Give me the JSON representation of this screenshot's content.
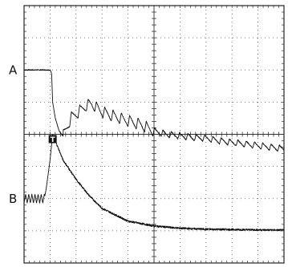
{
  "chart_data": {
    "type": "line",
    "title": "",
    "xlabel": "",
    "ylabel": "",
    "grid": true,
    "xlim": [
      0,
      10
    ],
    "ylim": [
      -4,
      4
    ],
    "x_divisions": 10,
    "y_divisions": 8,
    "trigger_marker": {
      "label": "T",
      "x": 1.1,
      "y": 0.0
    },
    "series": [
      {
        "name": "A",
        "label_y": 2.0,
        "points": [
          [
            0,
            2.0
          ],
          [
            1.0,
            2.0
          ],
          [
            1.06,
            1.9
          ],
          [
            1.1,
            1.0
          ],
          [
            1.2,
            0.5
          ],
          [
            1.35,
            0.1
          ],
          [
            1.5,
            -0.05
          ],
          [
            1.8,
            0.5
          ],
          [
            2.1,
            0.7
          ],
          [
            2.4,
            0.9
          ],
          [
            2.6,
            0.95
          ],
          [
            3.0,
            0.7
          ],
          [
            3.5,
            0.55
          ],
          [
            4.0,
            0.42
          ],
          [
            4.5,
            0.3
          ],
          [
            5.0,
            0.1
          ],
          [
            5.5,
            0.0
          ],
          [
            6.0,
            -0.05
          ],
          [
            6.5,
            -0.1
          ],
          [
            7.0,
            -0.12
          ],
          [
            7.5,
            -0.2
          ],
          [
            8.0,
            -0.25
          ],
          [
            8.5,
            -0.3
          ],
          [
            9.0,
            -0.35
          ],
          [
            9.5,
            -0.4
          ],
          [
            10.0,
            -0.45
          ]
        ],
        "ripple_amplitude_divs": 0.2,
        "ripple_period_divs": 0.32
      },
      {
        "name": "B",
        "label_y": -2.0,
        "points": [
          [
            0,
            -2.0
          ],
          [
            0.78,
            -2.0
          ],
          [
            0.85,
            -1.7
          ],
          [
            1.0,
            -0.8
          ],
          [
            1.1,
            0.0
          ],
          [
            1.5,
            -0.8
          ],
          [
            2.0,
            -1.4
          ],
          [
            2.5,
            -1.9
          ],
          [
            3.0,
            -2.3
          ],
          [
            4.0,
            -2.7
          ],
          [
            5.0,
            -2.85
          ],
          [
            6.0,
            -2.92
          ],
          [
            7.0,
            -2.95
          ],
          [
            8.0,
            -2.96
          ],
          [
            9.0,
            -2.97
          ],
          [
            10.0,
            -2.98
          ]
        ],
        "ripple_amplitude_divs": 0.2,
        "ripple_period_divs": 0.12
      }
    ]
  }
}
